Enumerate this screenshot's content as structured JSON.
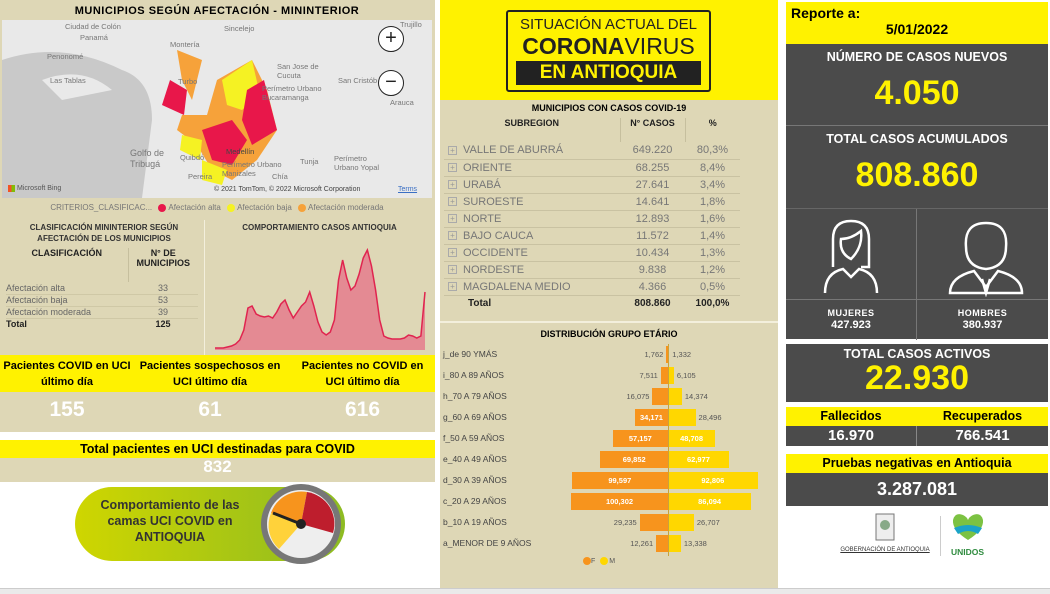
{
  "map_panel": {
    "title": "MUNICIPIOS SEGÚN AFECTACIÓN - MININTERIOR",
    "place_labels": [
      "Ciudad de Colón",
      "Panamá",
      "Penonomé",
      "Las Tablas",
      "Montería",
      "Sincelejo",
      "Turbo",
      "San Jose de Cucuta",
      "Perímetro Urbano Bucaramanga",
      "San Cristób",
      "Arauca",
      "Trujillo",
      "Golfo de Tribugá",
      "Quibdó",
      "Tunja",
      "Perímetro Urbano Yopal",
      "Perímetro Urbano Manizales",
      "Pereira",
      "Chía",
      "Medellín"
    ],
    "zoom_in": "+",
    "zoom_out": "−",
    "bing": "Microsoft Bing",
    "copyright": "© 2021 TomTom, © 2022 Microsoft Corporation",
    "terms": "Terms",
    "legend": {
      "field": "CRITERIOS_CLASIFICAC...",
      "items": [
        {
          "label": "Afectación alta",
          "color": "#e8174a"
        },
        {
          "label": "Afectación baja",
          "color": "#f5f223"
        },
        {
          "label": "Afectación moderada",
          "color": "#f6a23a"
        }
      ]
    }
  },
  "classification": {
    "title": "CLASIFICACIÓN MININTERIOR SEGÚN AFECTACIÓN DE LOS MUNICIPIOS",
    "col1": "CLASIFICACIÓN",
    "col2": "N° DE MUNICIPIOS",
    "rows": [
      [
        "Afectación alta",
        "33"
      ],
      [
        "Afectación baja",
        "53"
      ],
      [
        "Afectación moderada",
        "39"
      ]
    ],
    "total": [
      "Total",
      "125"
    ]
  },
  "trend": {
    "title": "COMPORTAMIENTO CASOS ANTIOQUIA",
    "color": "#e0244f"
  },
  "uci": {
    "headers": [
      "Pacientes COVID en UCI último día",
      "Pacientes sospechosos en UCI último día",
      "Pacientes no COVID en UCI último día"
    ],
    "values": [
      "155",
      "61",
      "616"
    ],
    "total_label": "Total pacientes en UCI destinadas para COVID",
    "total_value": "832",
    "banner": "Comportamiento de las camas UCI COVID en ANTIOQUIA"
  },
  "header_logo": {
    "line1": "SITUACIÓN ACTUAL DEL",
    "bold": "CORONA",
    "light": "VIRUS",
    "line3": "EN ANTIOQUIA"
  },
  "subregions": {
    "title": "MUNICIPIOS CON CASOS COVID-19",
    "cols": [
      "SUBREGION",
      "N° CASOS",
      "%"
    ],
    "rows": [
      [
        "VALLE DE ABURRÁ",
        "649.220",
        "80,3%"
      ],
      [
        "ORIENTE",
        "68.255",
        "8,4%"
      ],
      [
        "URABÁ",
        "27.641",
        "3,4%"
      ],
      [
        "SUROESTE",
        "14.641",
        "1,8%"
      ],
      [
        "NORTE",
        "12.893",
        "1,6%"
      ],
      [
        "BAJO CAUCA",
        "11.572",
        "1,4%"
      ],
      [
        "OCCIDENTE",
        "10.434",
        "1,3%"
      ],
      [
        "NORDESTE",
        "9.838",
        "1,2%"
      ],
      [
        "MAGDALENA MEDIO",
        "4.366",
        "0,5%"
      ]
    ],
    "total": [
      "Total",
      "808.860",
      "100,0%"
    ]
  },
  "chart_data": [
    {
      "type": "area",
      "title": "COMPORTAMIENTO CASOS ANTIOQUIA",
      "values": [
        2,
        2,
        2,
        3,
        4,
        6,
        10,
        20,
        42,
        44,
        36,
        34,
        33,
        34,
        32,
        38,
        46,
        50,
        40,
        32,
        38,
        44,
        48,
        58,
        44,
        28,
        18,
        15,
        18,
        30,
        70,
        90,
        72,
        60,
        64,
        76,
        92,
        100,
        84,
        60,
        30,
        14,
        12,
        11,
        11,
        11,
        12,
        15,
        14,
        12,
        14,
        58
      ]
    },
    {
      "type": "bar",
      "title": "DISTRIBUCIÓN GRUPO ETÁRIO",
      "categories": [
        "j_de 90 YMÁS",
        "i_80 A 89 AÑOS",
        "h_70 A 79 AÑOS",
        "g_60 A 69 AÑOS",
        "f_50 A 59 AÑOS",
        "e_40 A 49 AÑOS",
        "d_30 A 39 AÑOS",
        "c_20 A 29 AÑOS",
        "b_10 A 19 AÑOS",
        "a_MENOR DE 9 AÑOS"
      ],
      "series": [
        {
          "name": "F",
          "color": "#f7941d",
          "values": [
            1762,
            7511,
            16075,
            34171,
            57157,
            69852,
            99597,
            100302,
            29235,
            12261
          ],
          "labels": [
            "1,762",
            "7,511",
            "16,075",
            "34,171",
            "57,157",
            "69,852",
            "99,597",
            "100,302",
            "29,235",
            "12,261"
          ]
        },
        {
          "name": "M",
          "color": "#ffd700",
          "values": [
            1332,
            6105,
            14374,
            28496,
            48708,
            62977,
            92806,
            86094,
            26707,
            13338
          ],
          "labels": [
            "1,332",
            "6,105",
            "14,374",
            "28,496",
            "48,708",
            "62,977",
            "92,806",
            "86,094",
            "26,707",
            "13,338"
          ]
        }
      ]
    }
  ],
  "report": {
    "label": "Reporte a:",
    "date": "5/01/2022",
    "new_cases_label": "NÚMERO DE CASOS NUEVOS",
    "new_cases": "4.050",
    "total_label": "TOTAL CASOS ACUMULADOS",
    "total": "808.860",
    "women_label": "MUJERES",
    "women": "427.923",
    "men_label": "HOMBRES",
    "men": "380.937",
    "active_label": "TOTAL CASOS ACTIVOS",
    "active": "22.930",
    "deaths_label": "Fallecidos",
    "deaths": "16.970",
    "recovered_label": "Recuperados",
    "recovered": "766.541",
    "negative_label": "Pruebas negativas en Antioquia",
    "negative": "3.287.081",
    "logo_gov": "GOBERNACIÓN DE ANTIOQUIA",
    "logo_unidos": "UNIDOS"
  }
}
